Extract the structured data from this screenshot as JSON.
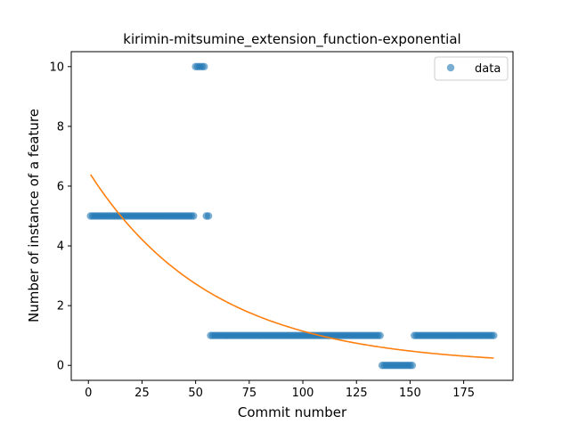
{
  "chart_data": {
    "type": "scatter",
    "title": "kirimin-mitsumine_extension_function-exponential",
    "xlabel": "Commit number",
    "ylabel": "Number of instance of a feature",
    "xlim": [
      -8,
      198
    ],
    "ylim": [
      -0.5,
      10.5
    ],
    "xticks": [
      0,
      25,
      50,
      75,
      100,
      125,
      150,
      175
    ],
    "yticks": [
      0,
      2,
      4,
      6,
      8,
      10
    ],
    "legend": {
      "position": "top-right",
      "entries": [
        "data"
      ]
    },
    "series": [
      {
        "name": "data",
        "kind": "scatter",
        "color": "#1f77b4",
        "segments": [
          {
            "x_start": 1,
            "x_end": 49,
            "y": 5
          },
          {
            "x_start": 50,
            "x_end": 54,
            "y": 10
          },
          {
            "x_start": 55,
            "x_end": 56,
            "y": 5
          },
          {
            "x_start": 57,
            "x_end": 136,
            "y": 1
          },
          {
            "x_start": 137,
            "x_end": 151,
            "y": 0
          },
          {
            "x_start": 152,
            "x_end": 189,
            "y": 1
          }
        ]
      },
      {
        "name": "",
        "kind": "line",
        "color": "#ff7f0e",
        "function": "exponential",
        "a": 6.5,
        "b": 0.01735,
        "x_start": 1,
        "x_end": 189
      }
    ]
  }
}
